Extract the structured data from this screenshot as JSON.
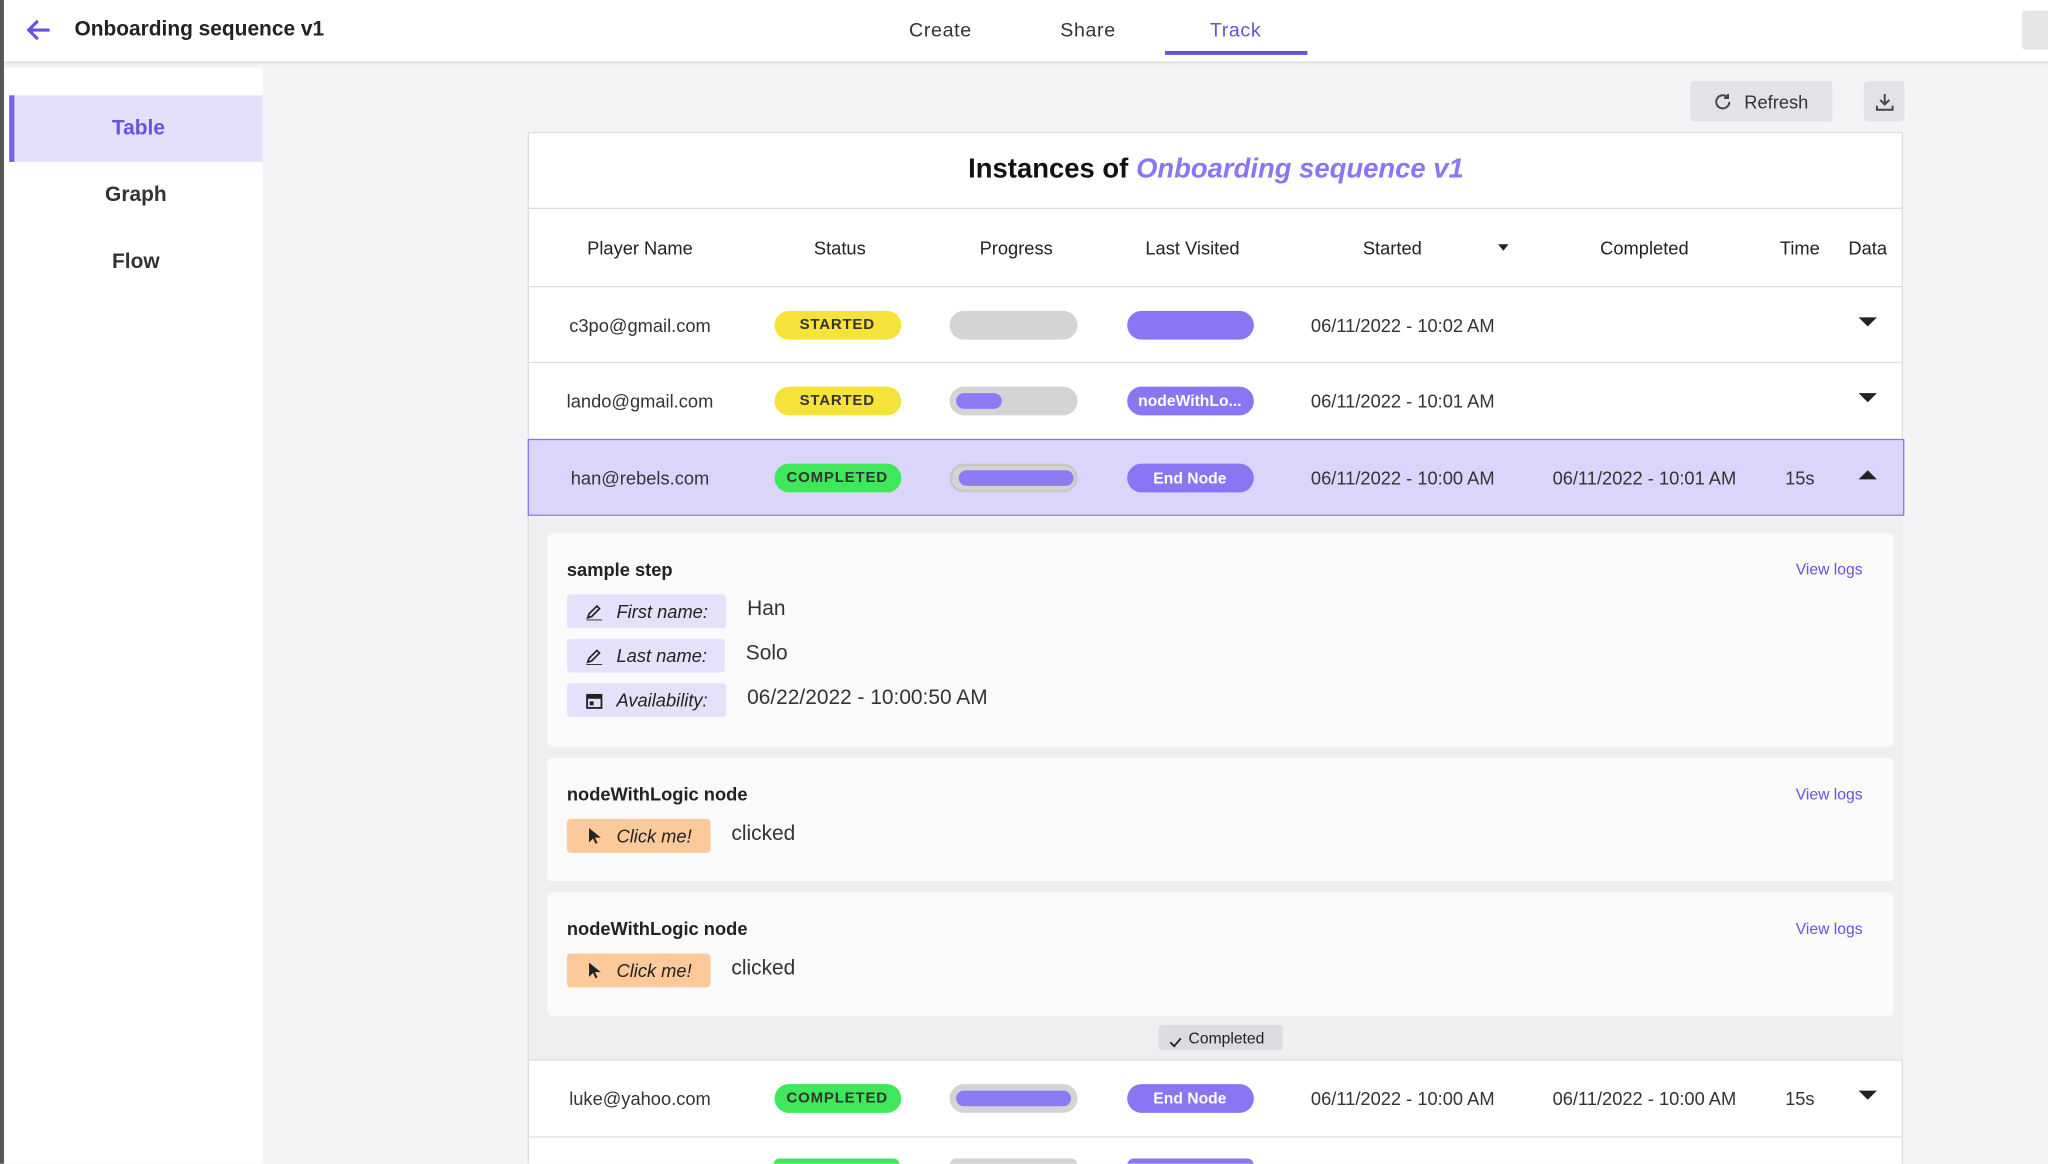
{
  "header": {
    "title": "Onboarding sequence v1",
    "tabs": [
      "Create",
      "Share",
      "Track"
    ],
    "active_tab": 2
  },
  "sidebar": {
    "items": [
      "Table",
      "Graph",
      "Flow"
    ],
    "active": 0
  },
  "toolbar": {
    "refresh": "Refresh"
  },
  "table": {
    "title_prefix": "Instances of",
    "title_name": "Onboarding sequence v1",
    "columns": [
      "Player Name",
      "Status",
      "Progress",
      "Last Visited",
      "Started",
      "Completed",
      "Time",
      "Data"
    ],
    "sort_column": 4,
    "rows": [
      {
        "player": "c3po@gmail.com",
        "status": "STARTED",
        "status_color": "#f6e33a",
        "progress": 0,
        "last_visited": null,
        "started": "06/11/2022 - 10:02 AM",
        "completed": null,
        "time": null,
        "expanded": false
      },
      {
        "player": "lando@gmail.com",
        "status": "STARTED",
        "status_color": "#f6e33a",
        "progress": 0.4,
        "last_visited": "nodeWithLo...",
        "started": "06/11/2022 - 10:01 AM",
        "completed": null,
        "time": null,
        "expanded": false
      },
      {
        "player": "han@rebels.com",
        "status": "COMPLETED",
        "status_color": "#3ee85a",
        "progress": 1,
        "last_visited": "End Node",
        "started": "06/11/2022 - 10:00 AM",
        "completed": "06/11/2022 - 10:01 AM",
        "time": "15s",
        "expanded": true,
        "details": {
          "steps": [
            {
              "title": "sample step",
              "link": "View logs",
              "fields": [
                {
                  "icon": "edit",
                  "color": "#e6e1fb",
                  "label": "First name:",
                  "value": "Han"
                },
                {
                  "icon": "edit",
                  "color": "#e6e1fb",
                  "label": "Last name:",
                  "value": "Solo"
                },
                {
                  "icon": "calendar",
                  "color": "#e6e1fb",
                  "label": "Availability:",
                  "value": "06/22/2022 - 10:00:50 AM"
                }
              ]
            },
            {
              "title": "nodeWithLogic node",
              "link": "View logs",
              "fields": [
                {
                  "icon": "cursor",
                  "color": "#fcc99a",
                  "label": "Click me!",
                  "value": "clicked"
                }
              ]
            },
            {
              "title": "nodeWithLogic node",
              "link": "View logs",
              "fields": [
                {
                  "icon": "cursor",
                  "color": "#fcc99a",
                  "label": "Click me!",
                  "value": "clicked"
                }
              ]
            }
          ],
          "footer": "Completed"
        }
      },
      {
        "player": "luke@yahoo.com",
        "status": "COMPLETED",
        "status_color": "#3ee85a",
        "progress": 1,
        "last_visited": "End Node",
        "started": "06/11/2022 - 10:00 AM",
        "completed": "06/11/2022 - 10:00 AM",
        "time": "15s",
        "expanded": false
      }
    ]
  }
}
